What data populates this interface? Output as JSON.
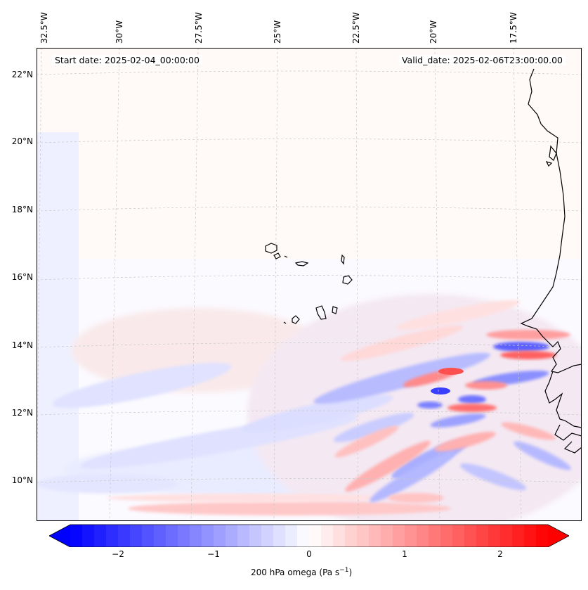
{
  "header": {
    "start_date": "Start date: 2025-02-04_00:00:00",
    "valid_date": "Valid_date: 2025-02-06T23:00:00.00"
  },
  "map": {
    "lon_labels": [
      "32.5°W",
      "30°W",
      "27.5°W",
      "25°W",
      "22.5°W",
      "20°W",
      "17.5°W"
    ],
    "lat_labels": [
      "22°N",
      "20°N",
      "18°N",
      "16°N",
      "14°N",
      "12°N",
      "10°N"
    ]
  },
  "colorbar": {
    "ticks": [
      "−2",
      "−1",
      "0",
      "1",
      "2"
    ],
    "tick_values": [
      -2,
      -1,
      0,
      1,
      2
    ],
    "range": [
      -2.5,
      2.5
    ],
    "label": "200 hPa omega (Pa s",
    "label_exp": "−1",
    "label_close": ")",
    "neg_color": "#0000ff",
    "zero_color": "#ffffff",
    "pos_color": "#ff0000"
  }
}
